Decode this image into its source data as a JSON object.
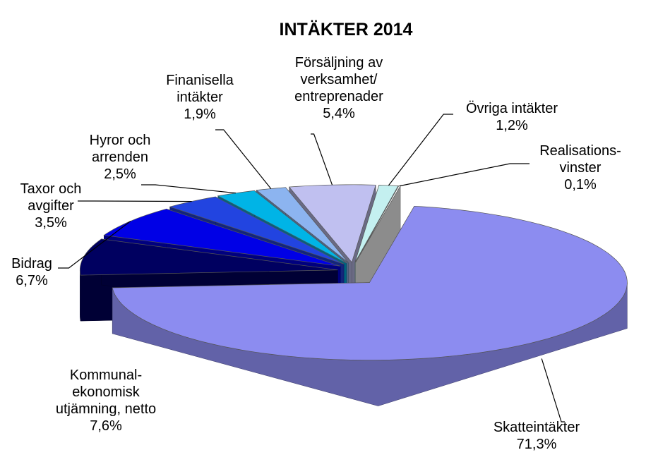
{
  "chart_data": {
    "type": "pie",
    "title": "INTÄKTER 2014",
    "categories": [
      [
        "Skatteintäkter"
      ],
      [
        "Kommunal-",
        "ekonomisk",
        "utjämning, netto"
      ],
      [
        "Bidrag"
      ],
      [
        "Taxor och",
        "avgifter"
      ],
      [
        "Hyror och",
        "arrenden"
      ],
      [
        "Finanisella",
        "intäkter"
      ],
      [
        "Försäljning av",
        "verksamhet/",
        "entreprenader"
      ],
      [
        "Övriga  intäkter"
      ],
      [
        "Realisations-",
        "vinster"
      ]
    ],
    "values": [
      71.3,
      7.6,
      6.7,
      3.5,
      2.5,
      1.9,
      5.4,
      1.2,
      0.1
    ],
    "value_labels": [
      "71,3%",
      "7,6%",
      "6,7%",
      "3,5%",
      "2,5%",
      "1,9%",
      "5,4%",
      "1,2%",
      "0,1%"
    ],
    "colors": [
      "#8c8cf0",
      "#000060",
      "#0000e6",
      "#2244e0",
      "#00b4e6",
      "#8cb4f0",
      "#c0c0f0",
      "#c4f0f0",
      "#ffffff"
    ]
  }
}
